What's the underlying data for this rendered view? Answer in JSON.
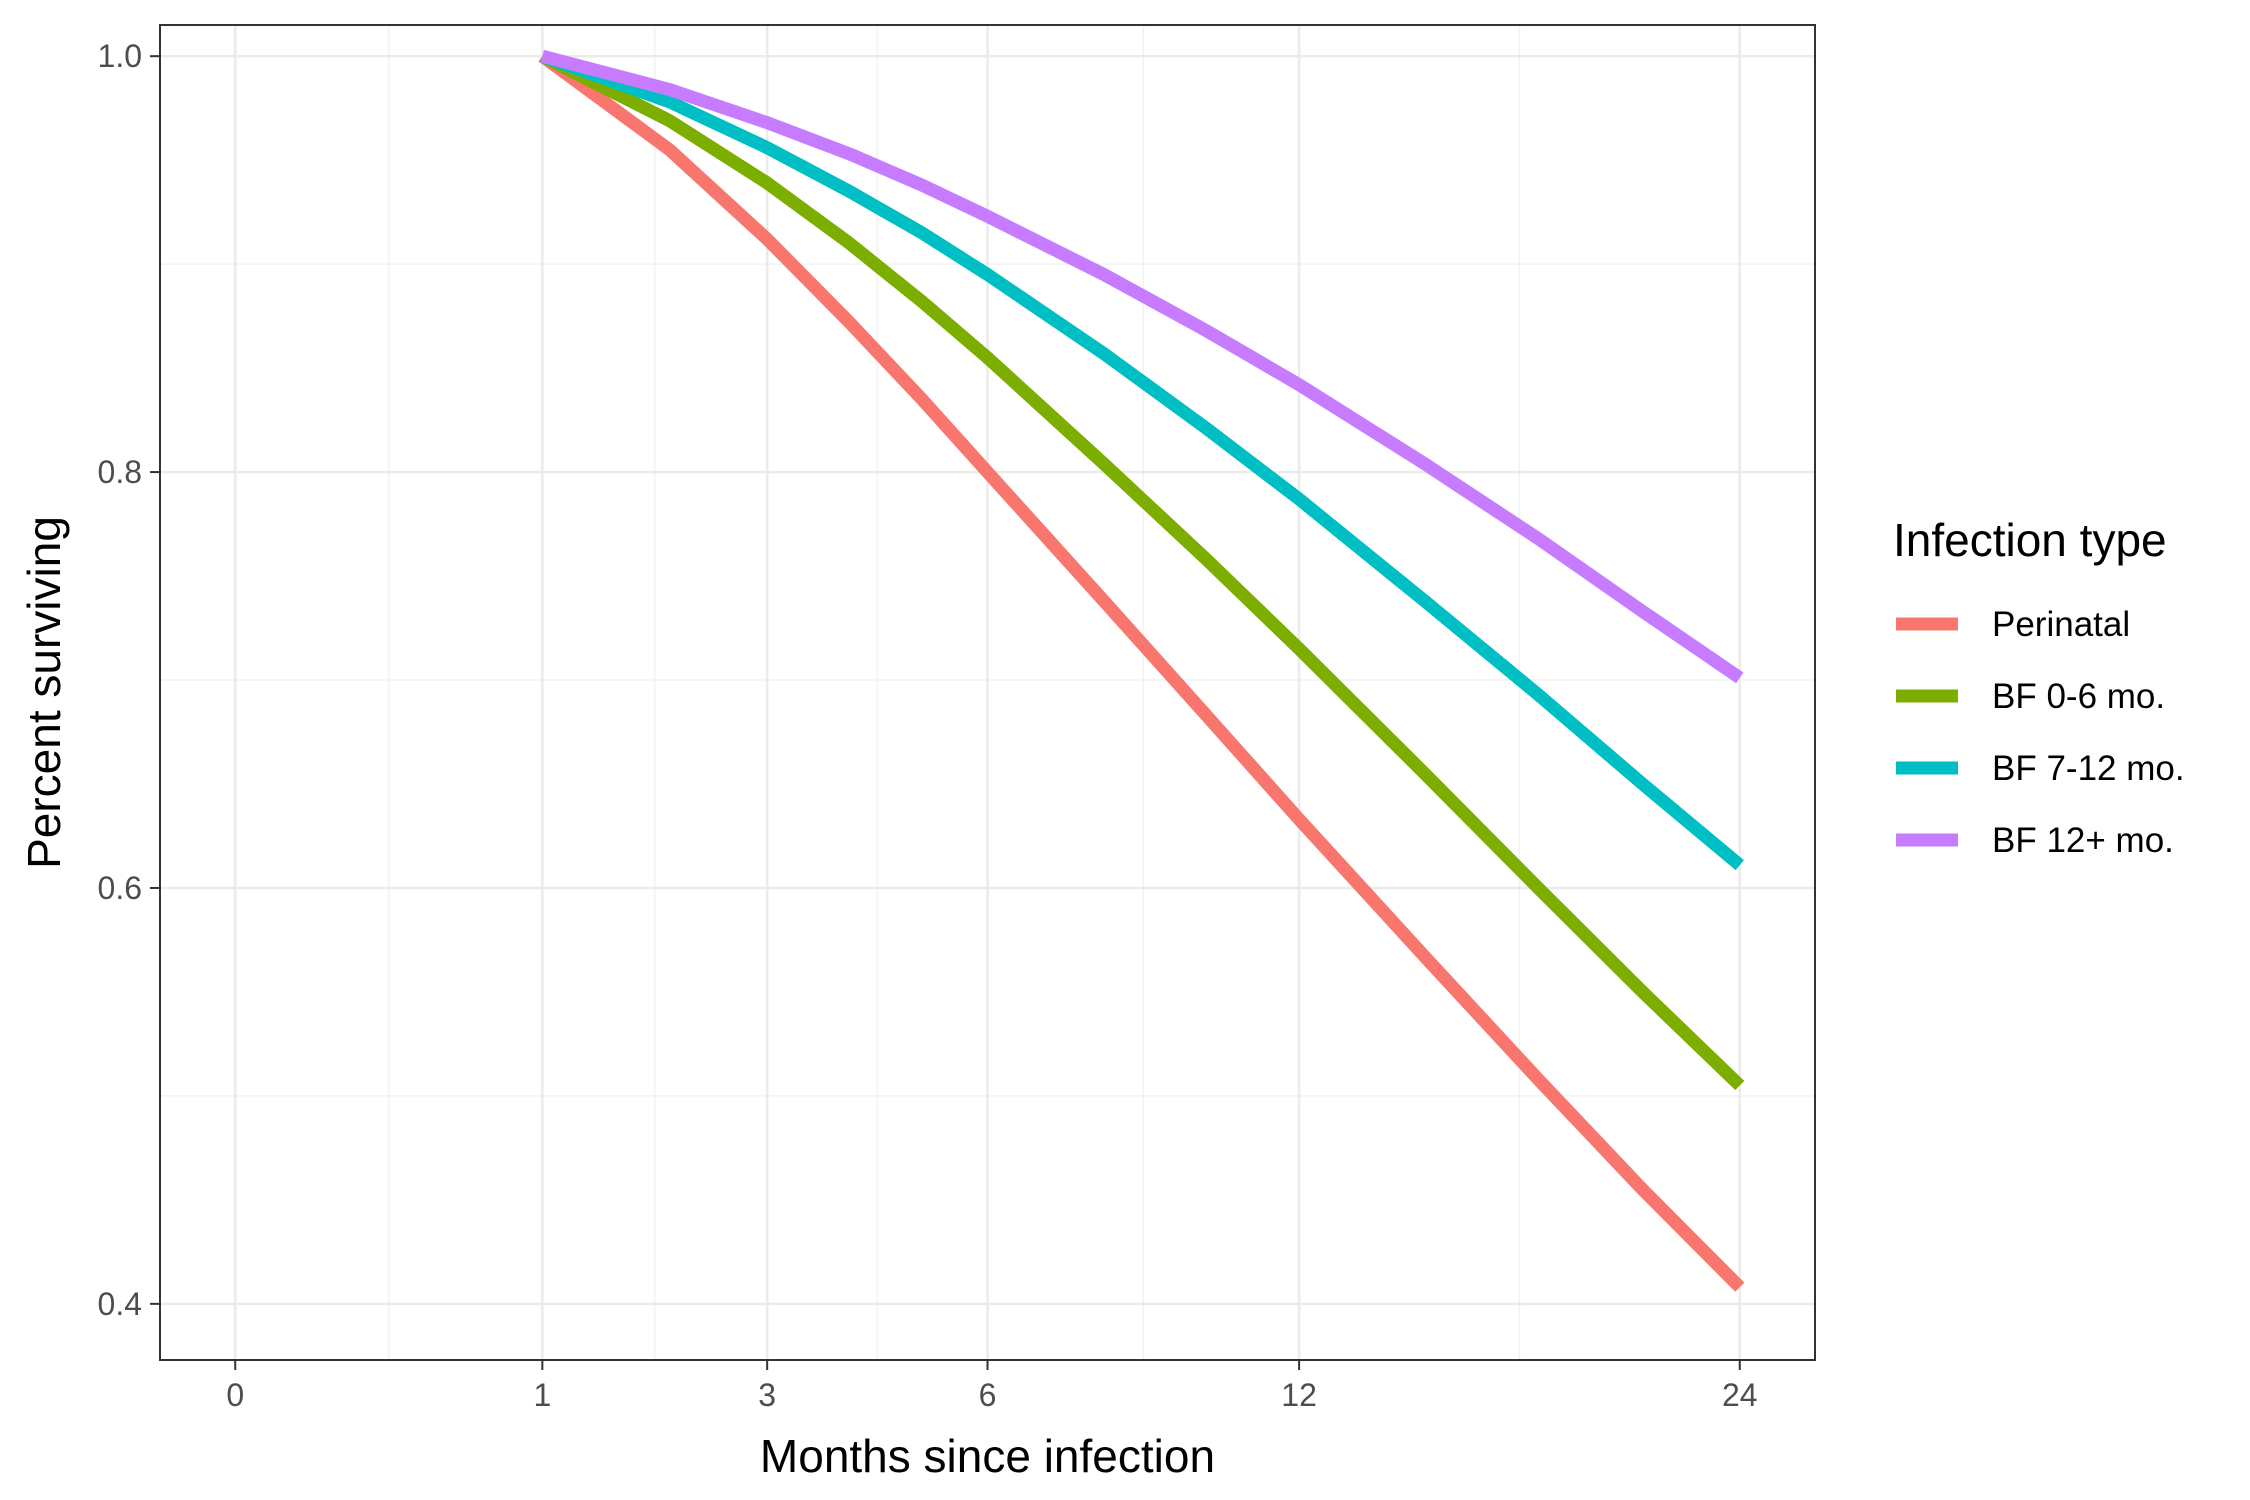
{
  "chart_data": {
    "type": "line",
    "title": "",
    "xlabel": "Months since infection",
    "ylabel": "Percent surviving",
    "xlim": [
      0,
      24
    ],
    "ylim": [
      0.4,
      1.0
    ],
    "x_ticks": [
      0,
      1,
      3,
      6,
      12,
      24
    ],
    "y_ticks": [
      0.4,
      0.6,
      0.8,
      1.0
    ],
    "y_tick_labels": [
      "0.4",
      "0.6",
      "0.8",
      "1.0"
    ],
    "x_scale": "sqrt",
    "grid": true,
    "legend": {
      "title": "Infection type",
      "position": "right"
    },
    "x": [
      1,
      2,
      3,
      4,
      5,
      6,
      8,
      10,
      12,
      15,
      18,
      21,
      24
    ],
    "series": [
      {
        "name": "Perinatal",
        "color": "#F8766D",
        "values": [
          1.0,
          0.955,
          0.912,
          0.872,
          0.835,
          0.8,
          0.738,
          0.683,
          0.633,
          0.567,
          0.508,
          0.455,
          0.408
        ]
      },
      {
        "name": "BF 0-6 mo.",
        "color": "#7CAE00",
        "values": [
          1.0,
          0.969,
          0.939,
          0.91,
          0.882,
          0.855,
          0.804,
          0.758,
          0.715,
          0.655,
          0.6,
          0.55,
          0.505
        ]
      },
      {
        "name": "BF 7-12 mo.",
        "color": "#00BFC4",
        "values": [
          1.0,
          0.978,
          0.956,
          0.935,
          0.915,
          0.895,
          0.857,
          0.821,
          0.787,
          0.738,
          0.693,
          0.65,
          0.611
        ]
      },
      {
        "name": "BF 12+ mo.",
        "color": "#C77CFF",
        "values": [
          1.0,
          0.984,
          0.968,
          0.953,
          0.938,
          0.923,
          0.895,
          0.868,
          0.842,
          0.804,
          0.768,
          0.733,
          0.701
        ]
      }
    ]
  }
}
